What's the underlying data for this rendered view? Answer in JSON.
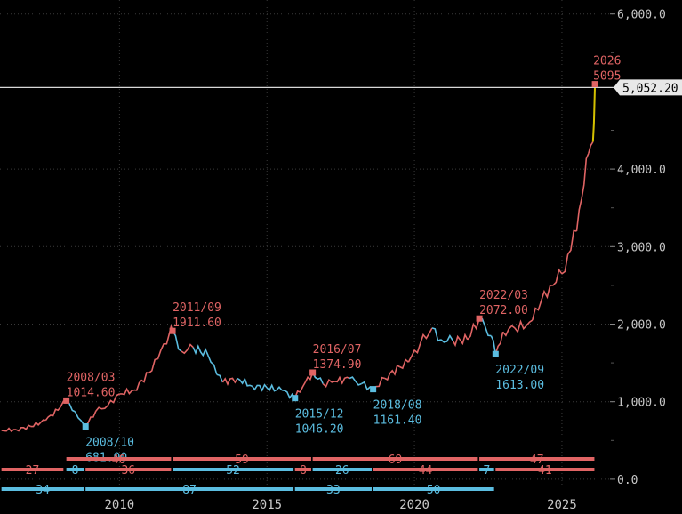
{
  "colors": {
    "background": "#000000",
    "grid": "#3a3a3a",
    "axis_text": "#c8c8c8",
    "up": "#e06464",
    "down": "#5bbde0",
    "highlight": "#d4c000",
    "price_tag_bg": "#e8e8e8",
    "price_line": "#d8d8d8"
  },
  "chart_data": {
    "type": "line",
    "title": "",
    "xlabel": "",
    "ylabel": "",
    "xlim": [
      2005.95,
      2026.75
    ],
    "ylim": [
      -70,
      6180
    ],
    "x_ticks": [
      {
        "value": 2010,
        "label": "2010"
      },
      {
        "value": 2015,
        "label": "2015"
      },
      {
        "value": 2020,
        "label": "2020"
      },
      {
        "value": 2025,
        "label": "2025"
      }
    ],
    "y_ticks": [
      {
        "value": 0,
        "label": "0.0"
      },
      {
        "value": 1000,
        "label": "1,000.0"
      },
      {
        "value": 2000,
        "label": "2,000.0"
      },
      {
        "value": 3000,
        "label": "3,000.0"
      },
      {
        "value": 4000,
        "label": "4,000.0"
      },
      {
        "value": 6000,
        "label": "6,000.0"
      }
    ],
    "current_price": {
      "value": 5052.2,
      "label": "5,052.20"
    },
    "series": [
      {
        "name": "price",
        "x": [
          2006.0,
          2006.5,
          2007.0,
          2007.5,
          2008.0,
          2008.2,
          2008.5,
          2008.8,
          2008.85,
          2009.2,
          2009.6,
          2010.0,
          2010.5,
          2011.0,
          2011.3,
          2011.7,
          2011.8,
          2012.1,
          2012.5,
          2013.0,
          2013.3,
          2013.5,
          2014.0,
          2014.5,
          2015.0,
          2015.5,
          2015.95,
          2016.3,
          2016.55,
          2016.9,
          2017.3,
          2017.8,
          2018.2,
          2018.6,
          2019.0,
          2019.5,
          2019.8,
          2020.2,
          2020.6,
          2020.9,
          2021.3,
          2021.8,
          2022.2,
          2022.6,
          2022.75,
          2023.0,
          2023.4,
          2023.8,
          2024.0,
          2024.3,
          2024.6,
          2025.0,
          2025.2,
          2025.5,
          2025.75,
          2025.9,
          2026.05,
          2026.12
        ],
        "values": [
          630,
          640,
          680,
          760,
          930,
          1014.6,
          870,
          700,
          681,
          880,
          950,
          1100,
          1150,
          1370,
          1550,
          1890,
          1911.6,
          1650,
          1700,
          1600,
          1350,
          1250,
          1300,
          1200,
          1180,
          1150,
          1046.2,
          1250,
          1374.9,
          1230,
          1260,
          1300,
          1230,
          1161.4,
          1300,
          1450,
          1510,
          1750,
          1950,
          1800,
          1790,
          1800,
          2072,
          1850,
          1613,
          1900,
          1950,
          1980,
          2050,
          2300,
          2500,
          2650,
          2900,
          3200,
          3800,
          4200,
          4350,
          5095
        ]
      }
    ],
    "annotations": [
      {
        "x": 2008.2,
        "y": 1014.6,
        "date": "2008/03",
        "value": "1014.60",
        "kind": "high"
      },
      {
        "x": 2008.85,
        "y": 681,
        "date": "2008/10",
        "value": "681.00",
        "kind": "low"
      },
      {
        "x": 2011.8,
        "y": 1911.6,
        "date": "2011/09",
        "value": "1911.60",
        "kind": "high"
      },
      {
        "x": 2015.95,
        "y": 1046.2,
        "date": "2015/12",
        "value": "1046.20",
        "kind": "low"
      },
      {
        "x": 2016.55,
        "y": 1374.9,
        "date": "2016/07",
        "value": "1374.90",
        "kind": "high"
      },
      {
        "x": 2018.6,
        "y": 1161.4,
        "date": "2018/08",
        "value": "1161.40",
        "kind": "low"
      },
      {
        "x": 2022.2,
        "y": 2072,
        "date": "2022/03",
        "value": "2072.00",
        "kind": "high"
      },
      {
        "x": 2022.75,
        "y": 1613,
        "date": "2022/09",
        "value": "1613.00",
        "kind": "low"
      },
      {
        "x": 2026.12,
        "y": 5095,
        "date": "2026",
        "value": "5095",
        "kind": "high"
      }
    ],
    "cycle_bars": [
      {
        "row": 1,
        "x0": 2008.2,
        "x1": 2011.75,
        "label": "40",
        "kind": "up"
      },
      {
        "row": 1,
        "x0": 2011.8,
        "x1": 2016.5,
        "label": "59",
        "kind": "up"
      },
      {
        "row": 1,
        "x0": 2016.55,
        "x1": 2022.15,
        "label": "69",
        "kind": "up"
      },
      {
        "row": 1,
        "x0": 2022.2,
        "x1": 2026.1,
        "label": "47",
        "kind": "up"
      },
      {
        "row": 2,
        "x0": 2006.0,
        "x1": 2008.1,
        "label": "27",
        "kind": "up"
      },
      {
        "row": 2,
        "x0": 2008.2,
        "x1": 2008.8,
        "label": "8",
        "kind": "down"
      },
      {
        "row": 2,
        "x0": 2008.85,
        "x1": 2011.75,
        "label": "36",
        "kind": "up"
      },
      {
        "row": 2,
        "x0": 2011.8,
        "x1": 2015.9,
        "label": "52",
        "kind": "down"
      },
      {
        "row": 2,
        "x0": 2015.95,
        "x1": 2016.5,
        "label": "8",
        "kind": "up"
      },
      {
        "row": 2,
        "x0": 2016.55,
        "x1": 2018.55,
        "label": "26",
        "kind": "down"
      },
      {
        "row": 2,
        "x0": 2018.6,
        "x1": 2022.15,
        "label": "44",
        "kind": "up"
      },
      {
        "row": 2,
        "x0": 2022.2,
        "x1": 2022.7,
        "label": "7",
        "kind": "down"
      },
      {
        "row": 2,
        "x0": 2022.75,
        "x1": 2026.1,
        "label": "41",
        "kind": "up"
      },
      {
        "row": 3,
        "x0": 2006.0,
        "x1": 2008.8,
        "label": "34",
        "kind": "down"
      },
      {
        "row": 3,
        "x0": 2008.85,
        "x1": 2015.9,
        "label": "87",
        "kind": "down"
      },
      {
        "row": 3,
        "x0": 2015.95,
        "x1": 2018.55,
        "label": "33",
        "kind": "down"
      },
      {
        "row": 3,
        "x0": 2018.6,
        "x1": 2022.7,
        "label": "50",
        "kind": "down"
      }
    ]
  }
}
